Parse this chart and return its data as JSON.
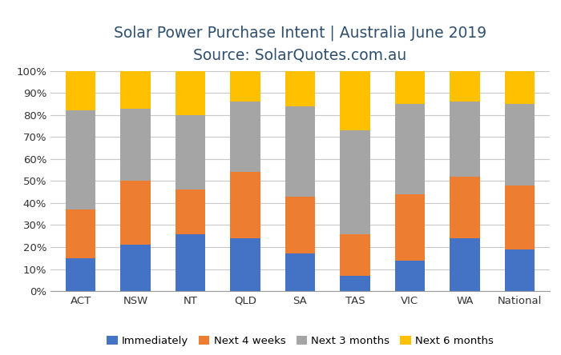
{
  "categories": [
    "ACT",
    "NSW",
    "NT",
    "QLD",
    "SA",
    "TAS",
    "VIC",
    "WA",
    "National"
  ],
  "immediately": [
    15,
    21,
    26,
    24,
    17,
    7,
    14,
    24,
    19
  ],
  "next_4_weeks": [
    22,
    29,
    20,
    30,
    26,
    19,
    30,
    28,
    29
  ],
  "next_3_months": [
    45,
    33,
    34,
    32,
    41,
    47,
    41,
    34,
    37
  ],
  "next_6_months": [
    18,
    17,
    20,
    14,
    16,
    27,
    15,
    14,
    15
  ],
  "colors": {
    "immediately": "#4472C4",
    "next_4_weeks": "#ED7D31",
    "next_3_months": "#A5A5A5",
    "next_6_months": "#FFC000"
  },
  "title_line1": "Solar Power Purchase Intent | Australia June 2019",
  "title_line2": "Source: SolarQuotes.com.au",
  "ylabel_ticks": [
    "0%",
    "10%",
    "20%",
    "30%",
    "40%",
    "50%",
    "60%",
    "70%",
    "80%",
    "90%",
    "100%"
  ],
  "ylim": [
    0,
    100
  ],
  "legend_labels": [
    "Immediately",
    "Next 4 weeks",
    "Next 3 months",
    "Next 6 months"
  ],
  "background_color": "#FFFFFF",
  "grid_color": "#C8C8C8",
  "bar_width": 0.55,
  "title_fontsize": 13.5,
  "subtitle_fontsize": 12.5,
  "tick_fontsize": 9.5,
  "legend_fontsize": 9.5,
  "title_color": "#2F4F6F"
}
